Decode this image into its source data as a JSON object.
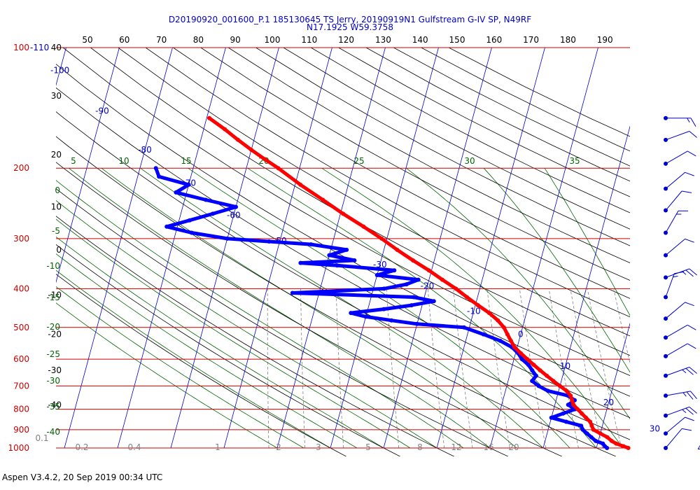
{
  "title_line1": "D20190920_001600_P.1 185130645 TS Jerry, 20190919N1 Gulfstream G-IV SP, N49RF",
  "title_line2": "N17.1925 W59.3758",
  "footer": "Aspen V3.4.2, 20 Sep 2019  00:34 UTC",
  "colors": {
    "pressure_lines": "#cc0000",
    "isotherms": "#0000cc",
    "dry_adiabats": "#000000",
    "moist_adiabats": "#006600",
    "mixing_ratio": "#808080",
    "temperature_trace": "#ff0000",
    "dewpoint_trace": "#0000ff",
    "wind_barbs": "#0000cc"
  },
  "chart_data": {
    "type": "scatter",
    "subtype": "skew-T log-P diagram",
    "y_axis": {
      "scale": "log",
      "unit_label": "",
      "ticks": [
        100,
        200,
        300,
        400,
        500,
        600,
        700,
        800,
        900,
        1000
      ],
      "tick_labels": [
        "100",
        "200",
        "300",
        "400",
        "500",
        "600",
        "700",
        "800",
        "900",
        "1000"
      ],
      "range": [
        100,
        1000
      ]
    },
    "top_scale_ticks": [
      "50",
      "60",
      "70",
      "80",
      "90",
      "100",
      "110",
      "120",
      "130",
      "140",
      "150",
      "160",
      "170",
      "180",
      "190"
    ],
    "top_left_labels": [
      "-110",
      "40",
      "30",
      "20",
      "10",
      "0",
      "-10",
      "-20",
      "-30",
      "-40"
    ],
    "top_left_label_pressures": [
      100,
      100,
      132,
      185,
      250,
      320,
      415,
      520,
      640,
      780
    ],
    "isotherm_labels": [
      {
        "t": -100,
        "p": 114
      },
      {
        "t": -90,
        "p": 144
      },
      {
        "t": -80,
        "p": 180
      },
      {
        "t": -70,
        "p": 218
      },
      {
        "t": -60,
        "p": 262
      },
      {
        "t": -50,
        "p": 304
      },
      {
        "t": -40,
        "p": 347
      },
      {
        "t": -30,
        "p": 348
      },
      {
        "t": -20,
        "p": 394
      },
      {
        "t": -10,
        "p": 455
      },
      {
        "t": 0,
        "p": 520
      },
      {
        "t": 10,
        "p": 625
      },
      {
        "t": 20,
        "p": 770
      },
      {
        "t": 30,
        "p": 895
      },
      {
        "t": 40,
        "p": 1000
      }
    ],
    "isotherm_label_texts": [
      "-100",
      "-90",
      "-80",
      "-70",
      "-60",
      "-50",
      "-40",
      "-30",
      "-20",
      "-10",
      "0",
      "10",
      "20",
      "30",
      "40"
    ],
    "moist_adiabat_labels": [
      "5",
      "10",
      "15",
      "20",
      "25",
      "30",
      "35"
    ],
    "moist_adiabat_left_labels": [
      "0",
      "-5",
      "-10",
      "-15",
      "-20",
      "-25",
      "-30",
      "-35",
      "-40"
    ],
    "mixing_ratio_labels": [
      "0.1",
      "0.2",
      "0.4",
      "1",
      "2",
      "3",
      "5",
      "8",
      "12",
      "16",
      "20"
    ],
    "series": [
      {
        "name": "",
        "role": "temperature",
        "points": [
          [
            1000,
            26.0
          ],
          [
            990,
            25.0
          ],
          [
            975,
            23.5
          ],
          [
            960,
            22.5
          ],
          [
            940,
            21.5
          ],
          [
            920,
            20.0
          ],
          [
            900,
            18.5
          ],
          [
            880,
            18.0
          ],
          [
            860,
            17.5
          ],
          [
            840,
            16.5
          ],
          [
            820,
            15.5
          ],
          [
            800,
            14.5
          ],
          [
            780,
            13.5
          ],
          [
            760,
            13.0
          ],
          [
            740,
            12.5
          ],
          [
            720,
            11.5
          ],
          [
            700,
            10.0
          ],
          [
            680,
            8.5
          ],
          [
            660,
            7.0
          ],
          [
            640,
            5.5
          ],
          [
            620,
            4.0
          ],
          [
            600,
            2.5
          ],
          [
            580,
            1.0
          ],
          [
            560,
            -0.5
          ],
          [
            540,
            -1.5
          ],
          [
            520,
            -2.5
          ],
          [
            500,
            -3.5
          ],
          [
            480,
            -5.0
          ],
          [
            460,
            -7.0
          ],
          [
            440,
            -9.5
          ],
          [
            420,
            -12.0
          ],
          [
            400,
            -14.5
          ],
          [
            380,
            -17.5
          ],
          [
            360,
            -20.5
          ],
          [
            340,
            -24.0
          ],
          [
            320,
            -27.5
          ],
          [
            300,
            -31.0
          ],
          [
            280,
            -35.0
          ],
          [
            260,
            -39.5
          ],
          [
            240,
            -44.0
          ],
          [
            220,
            -49.0
          ],
          [
            200,
            -54.0
          ],
          [
            190,
            -57.0
          ],
          [
            180,
            -60.0
          ],
          [
            170,
            -63.0
          ],
          [
            160,
            -66.0
          ],
          [
            150,
            -69.5
          ]
        ]
      },
      {
        "name": "",
        "role": "dewpoint",
        "points": [
          [
            1000,
            22.0
          ],
          [
            990,
            21.5
          ],
          [
            975,
            21.0
          ],
          [
            960,
            19.5
          ],
          [
            940,
            18.5
          ],
          [
            920,
            17.5
          ],
          [
            900,
            16.5
          ],
          [
            880,
            16.0
          ],
          [
            860,
            13.0
          ],
          [
            840,
            10.0
          ],
          [
            820,
            12.0
          ],
          [
            800,
            14.0
          ],
          [
            780,
            12.5
          ],
          [
            760,
            13.5
          ],
          [
            740,
            12.0
          ],
          [
            720,
            8.0
          ],
          [
            700,
            6.0
          ],
          [
            680,
            4.5
          ],
          [
            660,
            5.0
          ],
          [
            640,
            4.0
          ],
          [
            620,
            3.0
          ],
          [
            600,
            1.5
          ],
          [
            580,
            0.5
          ],
          [
            560,
            -1.0
          ],
          [
            540,
            -3.5
          ],
          [
            520,
            -7.0
          ],
          [
            500,
            -11.0
          ],
          [
            490,
            -20.0
          ],
          [
            480,
            -25.0
          ],
          [
            470,
            -30.0
          ],
          [
            460,
            -33.0
          ],
          [
            450,
            -27.0
          ],
          [
            440,
            -22.0
          ],
          [
            430,
            -18.0
          ],
          [
            420,
            -22.0
          ],
          [
            410,
            -45.0
          ],
          [
            400,
            -28.0
          ],
          [
            390,
            -24.0
          ],
          [
            380,
            -22.0
          ],
          [
            370,
            -30.0
          ],
          [
            360,
            -27.0
          ],
          [
            350,
            -38.0
          ],
          [
            345,
            -45.0
          ],
          [
            340,
            -35.0
          ],
          [
            330,
            -40.0
          ],
          [
            320,
            -37.0
          ],
          [
            310,
            -44.0
          ],
          [
            305,
            -52.0
          ],
          [
            300,
            -60.0
          ],
          [
            290,
            -67.0
          ],
          [
            280,
            -72.0
          ],
          [
            270,
            -68.0
          ],
          [
            260,
            -64.0
          ],
          [
            250,
            -60.0
          ],
          [
            240,
            -66.0
          ],
          [
            230,
            -72.0
          ],
          [
            220,
            -70.0
          ],
          [
            210,
            -76.0
          ],
          [
            200,
            -77.0
          ]
        ]
      }
    ],
    "wind_barbs": [
      {
        "p": 150,
        "dir": 270,
        "speed": 5
      },
      {
        "p": 170,
        "dir": 250,
        "speed": 10
      },
      {
        "p": 195,
        "dir": 240,
        "speed": 10
      },
      {
        "p": 225,
        "dir": 230,
        "speed": 10
      },
      {
        "p": 255,
        "dir": 220,
        "speed": 10
      },
      {
        "p": 290,
        "dir": 210,
        "speed": 5
      },
      {
        "p": 330,
        "dir": 230,
        "speed": 10
      },
      {
        "p": 375,
        "dir": 250,
        "speed": 15
      },
      {
        "p": 420,
        "dir": 200,
        "speed": 5
      },
      {
        "p": 475,
        "dir": 230,
        "speed": 10
      },
      {
        "p": 530,
        "dir": 240,
        "speed": 10
      },
      {
        "p": 590,
        "dir": 240,
        "speed": 10
      },
      {
        "p": 660,
        "dir": 250,
        "speed": 15
      },
      {
        "p": 740,
        "dir": 260,
        "speed": 15
      },
      {
        "p": 830,
        "dir": 250,
        "speed": 15
      },
      {
        "p": 920,
        "dir": 230,
        "speed": 10
      },
      {
        "p": 1000,
        "dir": 220,
        "speed": 10
      }
    ]
  }
}
